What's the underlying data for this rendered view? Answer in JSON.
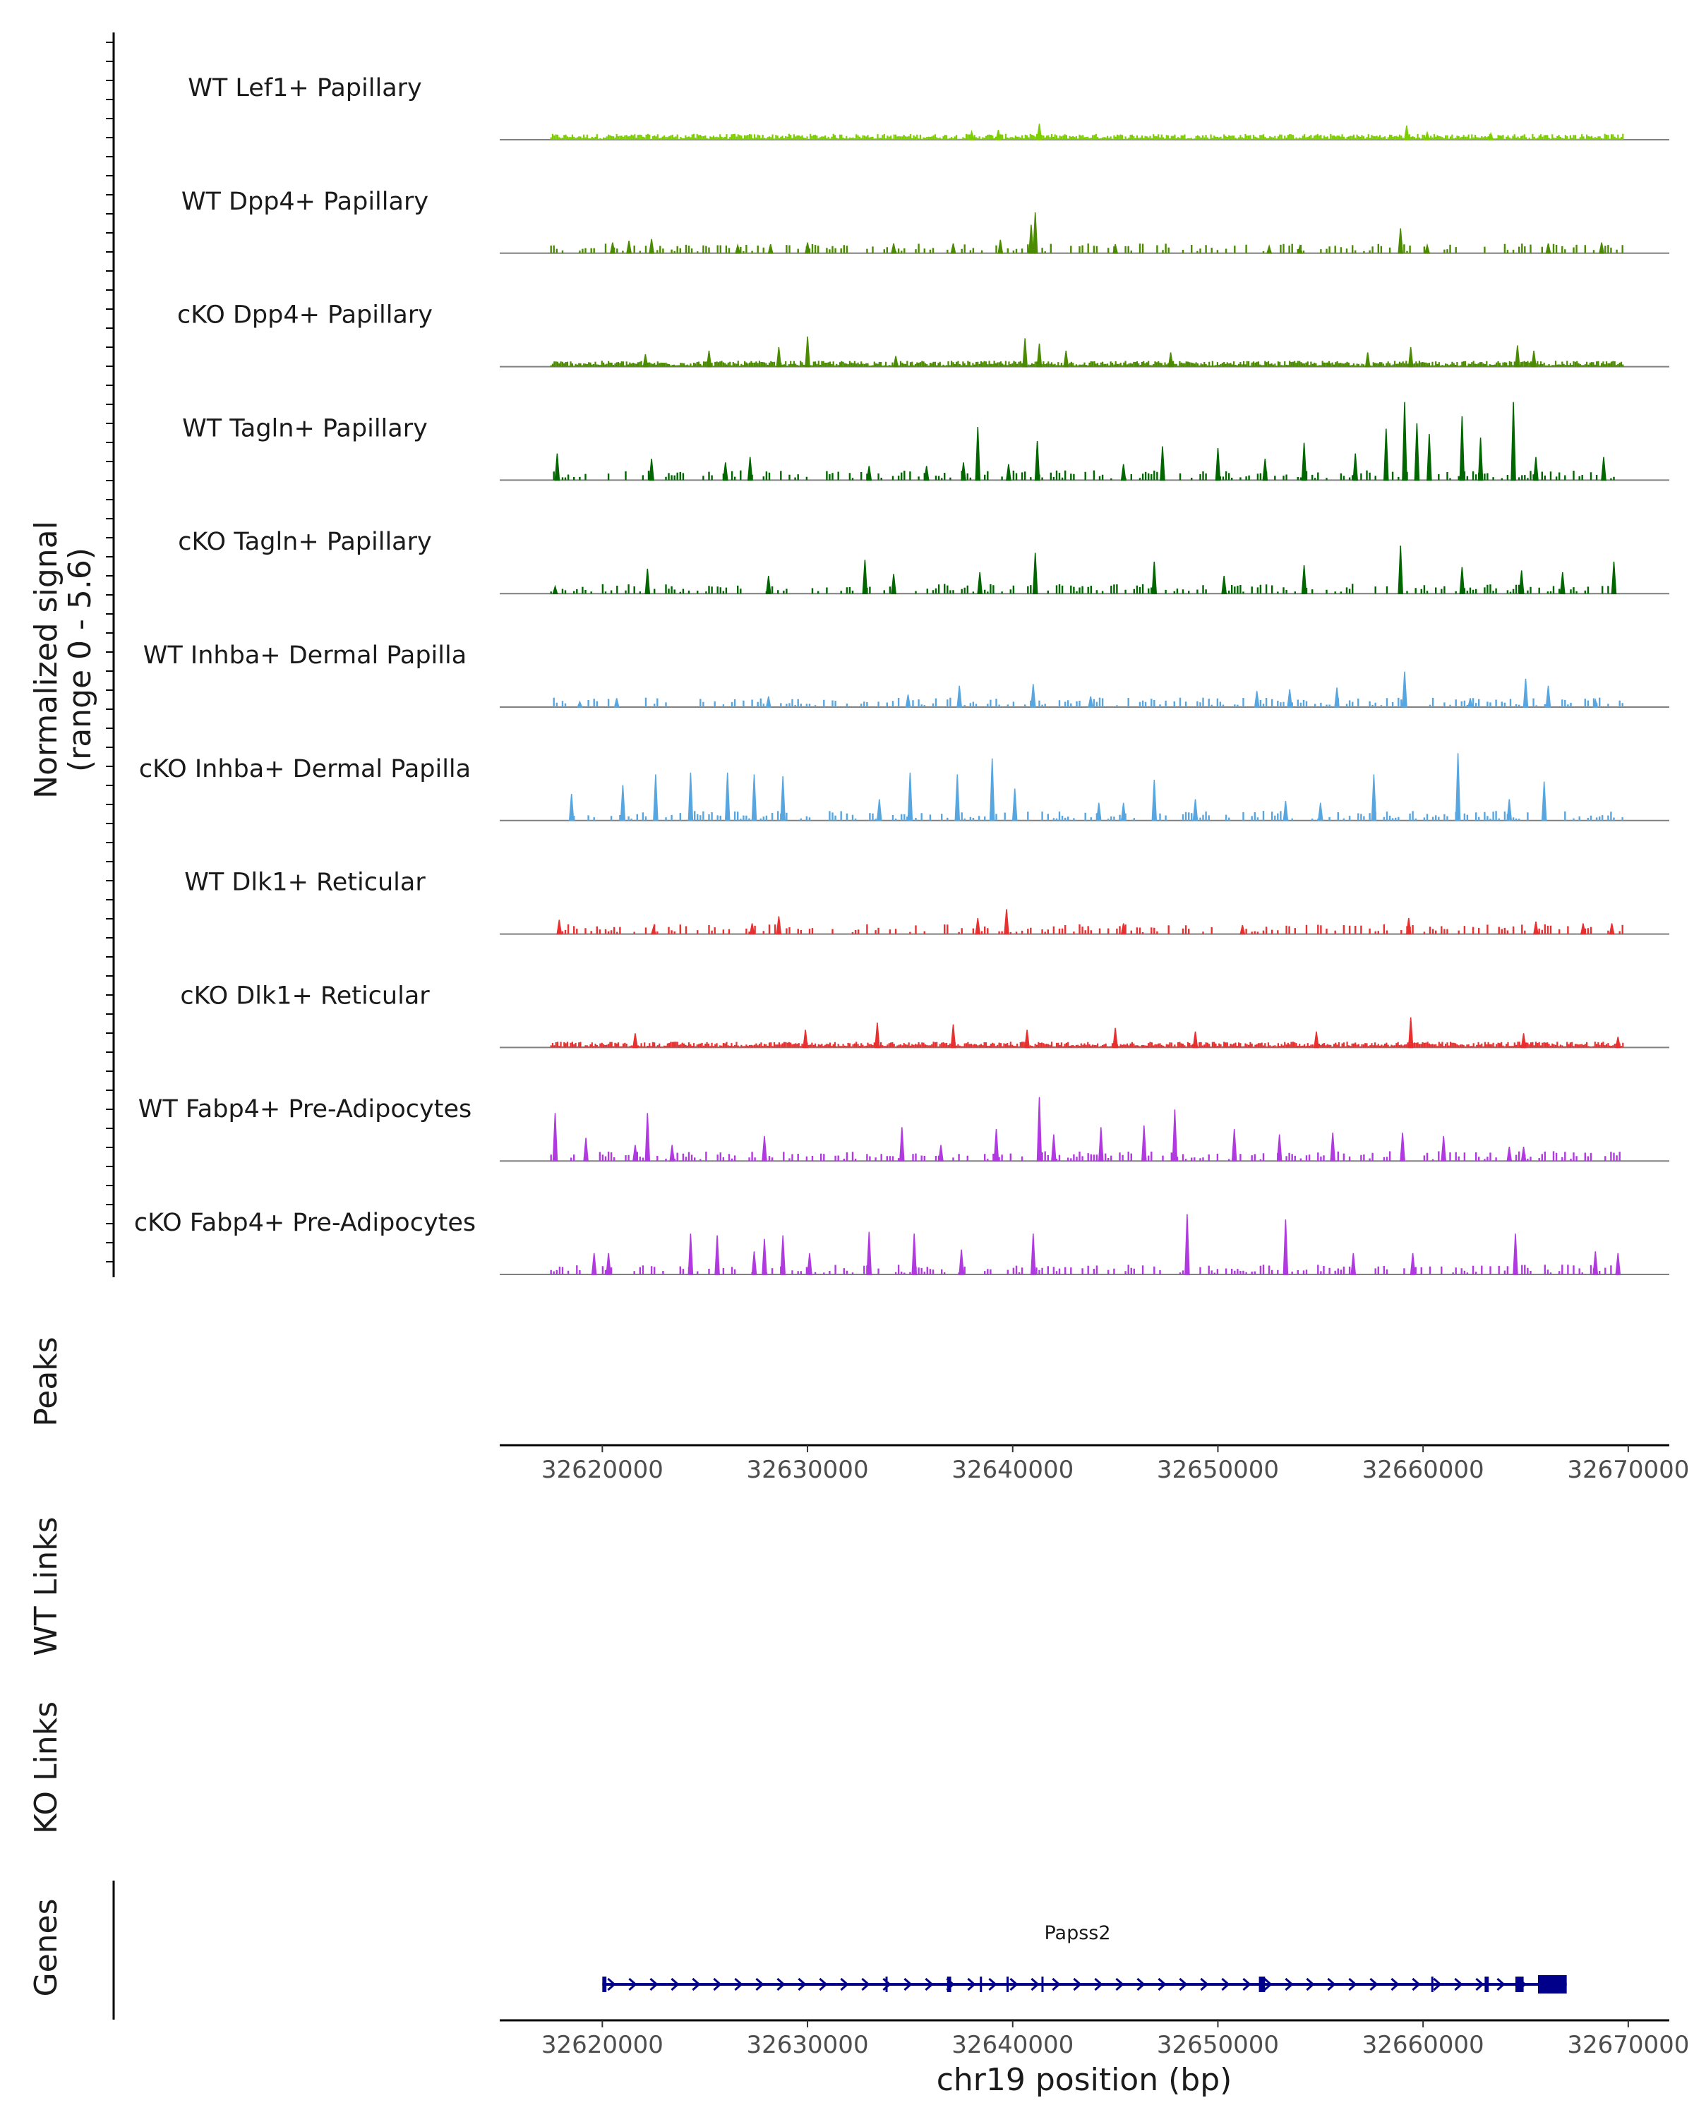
{
  "chart_data": {
    "type": "coverage-tracks",
    "chromosome": "chr19",
    "xlim": [
      32615000,
      32672000
    ],
    "x_ticks": [
      32620000,
      32630000,
      32640000,
      32650000,
      32660000,
      32670000
    ],
    "x_tick_labels": [
      "32620000",
      "32630000",
      "32640000",
      "32650000",
      "32660000",
      "32670000"
    ],
    "xlabel": "chr19 position (bp)",
    "ylabel_line1": "Normalized signal",
    "ylabel_line2": "(range 0 - 5.6)",
    "ylim": [
      0,
      5.6
    ],
    "panel_labels": {
      "peaks": "Peaks",
      "wt_links": "WT Links",
      "ko_links": "KO Links",
      "genes": "Genes"
    },
    "tracks": [
      {
        "name": "WT Lef1+ Papillary",
        "color": "#7cce00",
        "style": "dense",
        "peaks": [
          {
            "pos": 32641300,
            "height": 0.9
          },
          {
            "pos": 32659200,
            "height": 0.8
          },
          {
            "pos": 32639300,
            "height": 0.55
          },
          {
            "pos": 32638000,
            "height": 0.45
          },
          {
            "pos": 32660200,
            "height": 0.4
          },
          {
            "pos": 32663300,
            "height": 0.35
          }
        ]
      },
      {
        "name": "WT Dpp4+ Papillary",
        "color": "#4a8b00",
        "style": "sparse",
        "peaks": [
          {
            "pos": 32641100,
            "height": 2.3
          },
          {
            "pos": 32640900,
            "height": 1.6
          },
          {
            "pos": 32658900,
            "height": 1.4
          },
          {
            "pos": 32622400,
            "height": 0.8
          },
          {
            "pos": 32621300,
            "height": 0.7
          },
          {
            "pos": 32620500,
            "height": 0.6
          },
          {
            "pos": 32630000,
            "height": 0.6
          },
          {
            "pos": 32639400,
            "height": 0.75
          },
          {
            "pos": 32634200,
            "height": 0.55
          },
          {
            "pos": 32637100,
            "height": 0.55
          },
          {
            "pos": 32645000,
            "height": 0.5
          },
          {
            "pos": 32666100,
            "height": 0.55
          },
          {
            "pos": 32668700,
            "height": 0.6
          },
          {
            "pos": 32660200,
            "height": 0.45
          },
          {
            "pos": 32628200,
            "height": 0.5
          },
          {
            "pos": 32626600,
            "height": 0.45
          },
          {
            "pos": 32652500,
            "height": 0.4
          },
          {
            "pos": 32654000,
            "height": 0.4
          }
        ]
      },
      {
        "name": "cKO Dpp4+ Papillary",
        "color": "#4a8b00",
        "style": "dense",
        "peaks": [
          {
            "pos": 32630000,
            "height": 1.7
          },
          {
            "pos": 32640600,
            "height": 1.6
          },
          {
            "pos": 32641300,
            "height": 1.3
          },
          {
            "pos": 32628600,
            "height": 1.1
          },
          {
            "pos": 32625200,
            "height": 0.9
          },
          {
            "pos": 32659400,
            "height": 1.1
          },
          {
            "pos": 32664600,
            "height": 1.2
          },
          {
            "pos": 32642600,
            "height": 0.9
          },
          {
            "pos": 32665400,
            "height": 0.9
          },
          {
            "pos": 32647700,
            "height": 0.8
          },
          {
            "pos": 32657300,
            "height": 0.8
          },
          {
            "pos": 32622100,
            "height": 0.7
          },
          {
            "pos": 32634300,
            "height": 0.6
          }
        ]
      },
      {
        "name": "WT Tagln+ Papillary",
        "color": "#006600",
        "style": "sparse",
        "peaks": [
          {
            "pos": 32659100,
            "height": 4.4
          },
          {
            "pos": 32664400,
            "height": 4.4
          },
          {
            "pos": 32661900,
            "height": 3.6
          },
          {
            "pos": 32659700,
            "height": 3.2
          },
          {
            "pos": 32638300,
            "height": 3.0
          },
          {
            "pos": 32658200,
            "height": 2.9
          },
          {
            "pos": 32660300,
            "height": 2.6
          },
          {
            "pos": 32662800,
            "height": 2.4
          },
          {
            "pos": 32641200,
            "height": 2.2
          },
          {
            "pos": 32647300,
            "height": 1.9
          },
          {
            "pos": 32650000,
            "height": 1.8
          },
          {
            "pos": 32656700,
            "height": 1.5
          },
          {
            "pos": 32665500,
            "height": 1.3
          },
          {
            "pos": 32652300,
            "height": 1.2
          },
          {
            "pos": 32668800,
            "height": 1.3
          },
          {
            "pos": 32654200,
            "height": 2.1
          },
          {
            "pos": 32617800,
            "height": 1.5
          },
          {
            "pos": 32622400,
            "height": 1.2
          },
          {
            "pos": 32626000,
            "height": 1.0
          },
          {
            "pos": 32627200,
            "height": 1.3
          },
          {
            "pos": 32637600,
            "height": 1.0
          },
          {
            "pos": 32645400,
            "height": 0.9
          },
          {
            "pos": 32633000,
            "height": 0.8
          },
          {
            "pos": 32635800,
            "height": 0.8
          },
          {
            "pos": 32639800,
            "height": 0.9
          }
        ]
      },
      {
        "name": "cKO Tagln+ Papillary",
        "color": "#006600",
        "style": "sparse",
        "peaks": [
          {
            "pos": 32658900,
            "height": 2.7
          },
          {
            "pos": 32641100,
            "height": 2.3
          },
          {
            "pos": 32669300,
            "height": 1.8
          },
          {
            "pos": 32646900,
            "height": 1.8
          },
          {
            "pos": 32632800,
            "height": 1.9
          },
          {
            "pos": 32622200,
            "height": 1.4
          },
          {
            "pos": 32654200,
            "height": 1.6
          },
          {
            "pos": 32661900,
            "height": 1.5
          },
          {
            "pos": 32664800,
            "height": 1.3
          },
          {
            "pos": 32638400,
            "height": 1.2
          },
          {
            "pos": 32628100,
            "height": 1.0
          },
          {
            "pos": 32634200,
            "height": 1.1
          },
          {
            "pos": 32650300,
            "height": 1.0
          },
          {
            "pos": 32666800,
            "height": 1.2
          },
          {
            "pos": 32617700,
            "height": 0.4
          }
        ]
      },
      {
        "name": "WT Inhba+ Dermal Papilla",
        "color": "#58a6e0",
        "style": "sparse",
        "peaks": [
          {
            "pos": 32659100,
            "height": 2.0
          },
          {
            "pos": 32665000,
            "height": 1.6
          },
          {
            "pos": 32666100,
            "height": 1.2
          },
          {
            "pos": 32641000,
            "height": 1.3
          },
          {
            "pos": 32637400,
            "height": 1.2
          },
          {
            "pos": 32655800,
            "height": 1.1
          },
          {
            "pos": 32653500,
            "height": 1.0
          },
          {
            "pos": 32651900,
            "height": 0.9
          },
          {
            "pos": 32634900,
            "height": 0.7
          },
          {
            "pos": 32643800,
            "height": 0.6
          },
          {
            "pos": 32628100,
            "height": 0.6
          },
          {
            "pos": 32620700,
            "height": 0.5
          },
          {
            "pos": 32618900,
            "height": 0.3
          },
          {
            "pos": 32662300,
            "height": 0.5
          },
          {
            "pos": 32668400,
            "height": 0.4
          }
        ]
      },
      {
        "name": "cKO Inhba+ Dermal Papilla",
        "color": "#58a6e0",
        "style": "sparse",
        "peaks": [
          {
            "pos": 32661700,
            "height": 3.8
          },
          {
            "pos": 32639000,
            "height": 3.5
          },
          {
            "pos": 32624300,
            "height": 2.7
          },
          {
            "pos": 32626100,
            "height": 2.7
          },
          {
            "pos": 32635000,
            "height": 2.7
          },
          {
            "pos": 32657600,
            "height": 2.6
          },
          {
            "pos": 32646900,
            "height": 2.3
          },
          {
            "pos": 32665900,
            "height": 2.2
          },
          {
            "pos": 32622600,
            "height": 2.6
          },
          {
            "pos": 32627400,
            "height": 2.6
          },
          {
            "pos": 32621000,
            "height": 2.0
          },
          {
            "pos": 32628800,
            "height": 2.5
          },
          {
            "pos": 32618500,
            "height": 1.5
          },
          {
            "pos": 32637300,
            "height": 2.6
          },
          {
            "pos": 32640100,
            "height": 1.8
          },
          {
            "pos": 32633500,
            "height": 1.2
          },
          {
            "pos": 32648900,
            "height": 1.2
          },
          {
            "pos": 32653300,
            "height": 1.1
          },
          {
            "pos": 32655000,
            "height": 1.0
          },
          {
            "pos": 32664200,
            "height": 1.2
          },
          {
            "pos": 32644200,
            "height": 1.0
          },
          {
            "pos": 32645400,
            "height": 1.0
          }
        ]
      },
      {
        "name": "WT Dlk1+ Reticular",
        "color": "#e83030",
        "style": "sparse",
        "peaks": [
          {
            "pos": 32639700,
            "height": 1.4
          },
          {
            "pos": 32628600,
            "height": 1.0
          },
          {
            "pos": 32659300,
            "height": 0.9
          },
          {
            "pos": 32617900,
            "height": 0.8
          },
          {
            "pos": 32638300,
            "height": 0.9
          },
          {
            "pos": 32645400,
            "height": 0.6
          },
          {
            "pos": 32651200,
            "height": 0.5
          },
          {
            "pos": 32665500,
            "height": 0.7
          },
          {
            "pos": 32667800,
            "height": 0.6
          },
          {
            "pos": 32627300,
            "height": 0.6
          },
          {
            "pos": 32622500,
            "height": 0.4
          },
          {
            "pos": 32669200,
            "height": 0.6
          }
        ]
      },
      {
        "name": "cKO Dlk1+ Reticular",
        "color": "#e83030",
        "style": "dense",
        "peaks": [
          {
            "pos": 32659400,
            "height": 1.7
          },
          {
            "pos": 32633400,
            "height": 1.4
          },
          {
            "pos": 32637100,
            "height": 1.3
          },
          {
            "pos": 32645000,
            "height": 1.1
          },
          {
            "pos": 32640700,
            "height": 1.0
          },
          {
            "pos": 32629900,
            "height": 1.0
          },
          {
            "pos": 32654800,
            "height": 0.9
          },
          {
            "pos": 32648900,
            "height": 0.9
          },
          {
            "pos": 32621600,
            "height": 0.8
          },
          {
            "pos": 32664900,
            "height": 0.8
          },
          {
            "pos": 32669500,
            "height": 0.6
          }
        ]
      },
      {
        "name": "WT Fabp4+ Pre-Adipocytes",
        "color": "#b03ae0",
        "style": "sparse",
        "peaks": [
          {
            "pos": 32641300,
            "height": 3.6
          },
          {
            "pos": 32647900,
            "height": 2.9
          },
          {
            "pos": 32617700,
            "height": 2.7
          },
          {
            "pos": 32622200,
            "height": 2.7
          },
          {
            "pos": 32646400,
            "height": 2.0
          },
          {
            "pos": 32644300,
            "height": 1.9
          },
          {
            "pos": 32634600,
            "height": 1.9
          },
          {
            "pos": 32639200,
            "height": 1.8
          },
          {
            "pos": 32650800,
            "height": 1.8
          },
          {
            "pos": 32642000,
            "height": 1.5
          },
          {
            "pos": 32653000,
            "height": 1.5
          },
          {
            "pos": 32655600,
            "height": 1.6
          },
          {
            "pos": 32659000,
            "height": 1.6
          },
          {
            "pos": 32661000,
            "height": 1.4
          },
          {
            "pos": 32621600,
            "height": 0.9
          },
          {
            "pos": 32623400,
            "height": 0.9
          },
          {
            "pos": 32627900,
            "height": 1.4
          },
          {
            "pos": 32619200,
            "height": 1.3
          },
          {
            "pos": 32636500,
            "height": 0.9
          },
          {
            "pos": 32664200,
            "height": 0.8
          },
          {
            "pos": 32664900,
            "height": 0.8
          }
        ]
      },
      {
        "name": "cKO Fabp4+ Pre-Adipocytes",
        "color": "#b03ae0",
        "style": "sparse",
        "peaks": [
          {
            "pos": 32648500,
            "height": 3.4
          },
          {
            "pos": 32653300,
            "height": 3.1
          },
          {
            "pos": 32624300,
            "height": 2.3
          },
          {
            "pos": 32664500,
            "height": 2.3
          },
          {
            "pos": 32633000,
            "height": 2.4
          },
          {
            "pos": 32628800,
            "height": 2.2
          },
          {
            "pos": 32625600,
            "height": 2.2
          },
          {
            "pos": 32641000,
            "height": 2.3
          },
          {
            "pos": 32635200,
            "height": 2.3
          },
          {
            "pos": 32627900,
            "height": 2.0
          },
          {
            "pos": 32637500,
            "height": 1.4
          },
          {
            "pos": 32630100,
            "height": 1.2
          },
          {
            "pos": 32619600,
            "height": 1.2
          },
          {
            "pos": 32620300,
            "height": 1.2
          },
          {
            "pos": 32627400,
            "height": 1.3
          },
          {
            "pos": 32656600,
            "height": 1.2
          },
          {
            "pos": 32659500,
            "height": 1.2
          },
          {
            "pos": 32668400,
            "height": 1.3
          },
          {
            "pos": 32669500,
            "height": 1.2
          }
        ]
      }
    ],
    "genes": [
      {
        "name": "Papss2",
        "start": 32620000,
        "end": 32667000,
        "strand": "+",
        "color": "#00008b",
        "exons": [
          [
            32620000,
            32620200
          ],
          [
            32633800,
            32633900
          ],
          [
            32636800,
            32637000
          ],
          [
            32638400,
            32638500
          ],
          [
            32639700,
            32639800
          ],
          [
            32641400,
            32641500
          ],
          [
            32652000,
            32652300
          ],
          [
            32660400,
            32660500
          ],
          [
            32663000,
            32663200
          ],
          [
            32664500,
            32664900
          ],
          [
            32665600,
            32667000
          ]
        ]
      }
    ]
  }
}
